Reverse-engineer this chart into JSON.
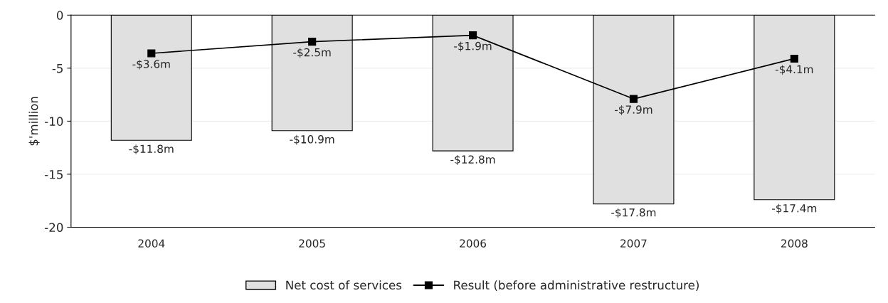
{
  "chart_data": {
    "type": "bar",
    "ylabel": "$'million",
    "categories": [
      "2004",
      "2005",
      "2006",
      "2007",
      "2008"
    ],
    "series": [
      {
        "name": "Net cost of services",
        "color": "#e0e0e0",
        "values": [
          -11.8,
          -10.9,
          -12.8,
          -17.8,
          -17.4
        ],
        "value_labels": [
          "-$11.8m",
          "-$10.9m",
          "-$12.8m",
          "-$17.8m",
          "-$17.4m"
        ]
      },
      {
        "type": "line",
        "name": "Result (before administrative restructure)",
        "color": "#000000",
        "marker": "square",
        "values": [
          -3.6,
          -2.5,
          -1.9,
          -7.9,
          -4.1
        ],
        "value_labels": [
          "-$3.6m",
          "-$2.5m",
          "-$1.9m",
          "-$7.9m",
          "-$4.1m"
        ]
      }
    ],
    "ylim": [
      -20,
      0
    ],
    "yticks": [
      0,
      -5,
      -10,
      -15,
      -20
    ],
    "grid": "y",
    "legend": "bottom"
  }
}
